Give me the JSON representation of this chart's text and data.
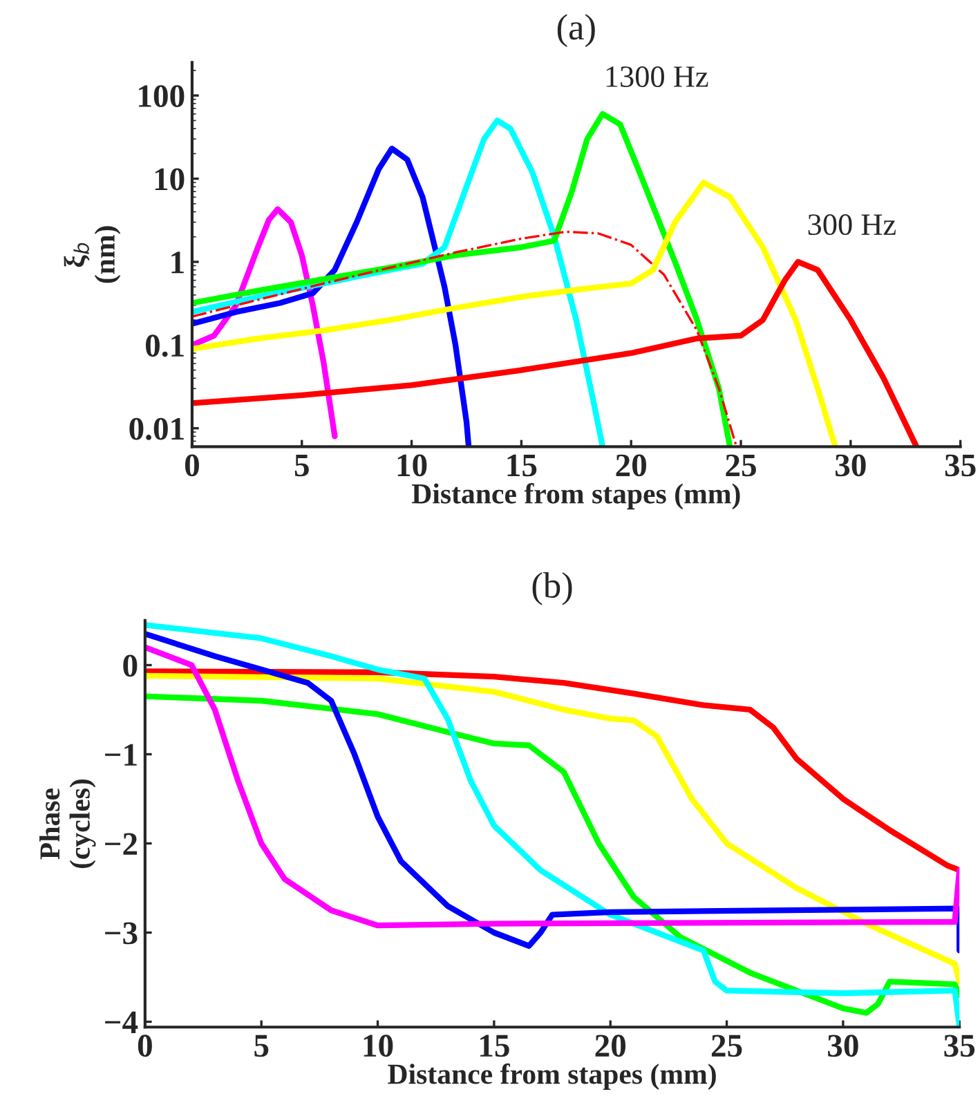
{
  "chart_data": [
    {
      "type": "line",
      "title": "(a)",
      "xlabel": "Distance from stapes (mm)",
      "ylabel": "ξ$_{b}$\n(nm)",
      "log": "y",
      "xlim": [
        0,
        35
      ],
      "xticks": [
        0,
        5,
        10,
        15,
        20,
        25,
        30,
        35
      ],
      "ylim": [
        0.006,
        250
      ],
      "yticks": [
        0.01,
        0.1,
        1,
        10,
        100
      ],
      "grid": false,
      "legend": false,
      "annotations": [
        {
          "text": "1300 Hz",
          "x": 18.7,
          "y": 60
        },
        {
          "text": "300 Hz",
          "x": 27.6,
          "y": 1.0
        }
      ],
      "series": [
        {
          "color": "#ff00ff",
          "x": [
            0,
            1,
            2,
            3,
            3.5,
            3.9,
            4.5,
            5,
            5.5,
            6,
            6.5
          ],
          "values": [
            0.1,
            0.13,
            0.3,
            1.5,
            3.2,
            4.3,
            3,
            1.2,
            0.3,
            0.06,
            0.008
          ]
        },
        {
          "color": "#0000ff",
          "x": [
            0,
            2,
            4,
            5.5,
            6.5,
            7.5,
            8.5,
            9.1,
            9.8,
            10.5,
            11.5,
            12,
            12.5,
            12.6
          ],
          "values": [
            0.18,
            0.25,
            0.32,
            0.42,
            0.8,
            3,
            13,
            23,
            17,
            6,
            0.5,
            0.1,
            0.012,
            0.006
          ]
        },
        {
          "color": "#00ffff",
          "x": [
            0,
            3,
            6,
            9,
            10.5,
            11.5,
            12.5,
            13.3,
            13.9,
            14.5,
            15.5,
            16.5,
            17.5,
            18.3,
            18.7
          ],
          "values": [
            0.25,
            0.38,
            0.55,
            0.8,
            0.95,
            1.5,
            8,
            30,
            50,
            40,
            12,
            2,
            0.2,
            0.02,
            0.006
          ]
        },
        {
          "color": "#00ff00",
          "x": [
            0,
            3,
            6,
            9,
            12,
            15,
            16.5,
            17.3,
            18,
            18.7,
            19.5,
            20.5,
            22,
            23,
            24,
            24.5
          ],
          "values": [
            0.32,
            0.45,
            0.62,
            0.85,
            1.2,
            1.5,
            1.8,
            7,
            30,
            60,
            45,
            10,
            1,
            0.2,
            0.03,
            0.006
          ]
        },
        {
          "color": "#ff0000",
          "line_style": "dashdot",
          "x": [
            0,
            3,
            6,
            9,
            12,
            15,
            17,
            18.5,
            20,
            21.5,
            23,
            24,
            24.8
          ],
          "values": [
            0.22,
            0.35,
            0.55,
            0.85,
            1.3,
            1.9,
            2.3,
            2.2,
            1.6,
            0.7,
            0.15,
            0.03,
            0.006
          ]
        },
        {
          "color": "#ffff00",
          "x": [
            0,
            3,
            6,
            9,
            12,
            15,
            18,
            20,
            21,
            22,
            23.3,
            24.5,
            26,
            27.5,
            28.5,
            29.3
          ],
          "values": [
            0.09,
            0.12,
            0.15,
            0.2,
            0.28,
            0.38,
            0.48,
            0.55,
            0.8,
            3,
            9,
            6,
            1.5,
            0.2,
            0.03,
            0.006
          ]
        },
        {
          "color": "#ff0000",
          "x": [
            0,
            5,
            10,
            15,
            20,
            23,
            25,
            26,
            27,
            27.6,
            28.5,
            30,
            31.5,
            33
          ],
          "values": [
            0.02,
            0.025,
            0.033,
            0.05,
            0.08,
            0.12,
            0.13,
            0.2,
            0.6,
            1.0,
            0.8,
            0.2,
            0.04,
            0.006
          ]
        }
      ]
    },
    {
      "type": "line",
      "title": "(b)",
      "xlabel": "Distance from stapes (mm)",
      "ylabel": "Phase\n(cycles)",
      "xlim": [
        0,
        35
      ],
      "xticks": [
        0,
        5,
        10,
        15,
        20,
        25,
        30,
        35
      ],
      "ylim": [
        -4.06,
        0.5
      ],
      "yticks": [
        {
          "value": -4,
          "label": "−4"
        },
        {
          "value": -3,
          "label": "−3"
        },
        {
          "value": -2,
          "label": "−2"
        },
        {
          "value": -1,
          "label": "−1"
        },
        0
      ],
      "grid": false,
      "legend": false,
      "series": [
        {
          "color": "#ff0000",
          "x": [
            0,
            10,
            15,
            18,
            21,
            24,
            26,
            27,
            28,
            30,
            32,
            34.5,
            35
          ],
          "values": [
            -0.07,
            -0.08,
            -0.13,
            -0.2,
            -0.32,
            -0.45,
            -0.5,
            -0.7,
            -1.05,
            -1.5,
            -1.85,
            -2.25,
            -2.3
          ]
        },
        {
          "color": "#ffff00",
          "x": [
            0,
            10,
            15,
            18,
            20,
            21,
            22,
            23.5,
            25,
            28,
            31,
            34.8,
            35
          ],
          "values": [
            -0.12,
            -0.15,
            -0.3,
            -0.5,
            -0.6,
            -0.62,
            -0.8,
            -1.5,
            -2.0,
            -2.5,
            -2.9,
            -3.35,
            -3.55
          ]
        },
        {
          "color": "#00ff00",
          "x": [
            0,
            5,
            10,
            13,
            15,
            16.5,
            18,
            19.5,
            21,
            23,
            26,
            30,
            31,
            31.5,
            32,
            34.8,
            35
          ],
          "values": [
            -0.35,
            -0.4,
            -0.55,
            -0.75,
            -0.88,
            -0.9,
            -1.2,
            -2.0,
            -2.6,
            -3.05,
            -3.45,
            -3.85,
            -3.9,
            -3.8,
            -3.55,
            -3.58,
            -3.7
          ]
        },
        {
          "color": "#00ffff",
          "x": [
            0,
            5,
            8,
            10,
            12,
            13,
            14,
            15,
            17,
            20,
            22,
            24,
            24.5,
            25,
            30,
            34.8,
            35
          ],
          "values": [
            0.45,
            0.3,
            0.1,
            -0.05,
            -0.15,
            -0.6,
            -1.3,
            -1.8,
            -2.3,
            -2.8,
            -3.0,
            -3.2,
            -3.55,
            -3.65,
            -3.68,
            -3.65,
            -4.05
          ]
        },
        {
          "color": "#0000ff",
          "x": [
            0,
            3,
            5,
            7,
            8,
            9,
            10,
            11,
            13,
            15,
            16.5,
            17,
            17.5,
            20,
            35,
            35
          ],
          "values": [
            0.35,
            0.1,
            -0.05,
            -0.2,
            -0.4,
            -1.0,
            -1.7,
            -2.2,
            -2.7,
            -3.0,
            -3.15,
            -3.0,
            -2.8,
            -2.77,
            -2.73,
            -3.2
          ]
        },
        {
          "color": "#ff00ff",
          "x": [
            0,
            2,
            3,
            4,
            5,
            6,
            8,
            10,
            15,
            34.8,
            35
          ],
          "values": [
            0.2,
            0,
            -0.5,
            -1.3,
            -2.0,
            -2.4,
            -2.75,
            -2.92,
            -2.9,
            -2.88,
            -2.3
          ]
        }
      ]
    }
  ]
}
